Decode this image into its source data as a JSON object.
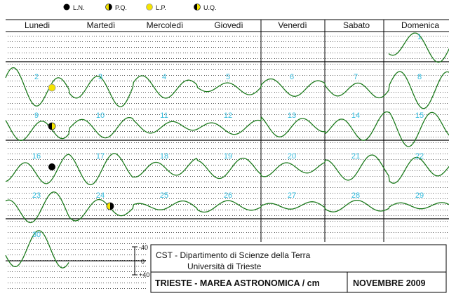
{
  "legend": [
    {
      "label": "L.N.",
      "phase": "new"
    },
    {
      "label": "P.Q.",
      "phase": "first-quarter"
    },
    {
      "label": "L.P.",
      "phase": "full"
    },
    {
      "label": "U.Q.",
      "phase": "last-quarter"
    }
  ],
  "days": [
    "Lunedi",
    "Martedì",
    "Mercoledì",
    "Giovedì",
    "Venerdì",
    "Sabato",
    "Domenica"
  ],
  "scale_labels": [
    "-40",
    "0",
    "+40"
  ],
  "footer": {
    "line1": "CST - Dipartimento di Scienze della Terra",
    "line2": "Università di Trieste",
    "title": "TRIESTE - MAREA ASTRONOMICA / cm",
    "month": "NOVEMBRE 2009"
  },
  "colors": {
    "curve": "#1c7a1c",
    "day_number": "#33bbdd",
    "grid": "#000000",
    "full_moon": "#f5e400"
  },
  "chart_data": {
    "type": "line",
    "title": "TRIESTE - MAREA ASTRONOMICA / cm",
    "month": "NOVEMBRE 2009",
    "units": "cm",
    "ylim": [
      -40,
      40
    ],
    "x_categories": [
      "Lunedi",
      "Martedì",
      "Mercoledì",
      "Giovedì",
      "Venerdì",
      "Sabato",
      "Domenica"
    ],
    "weeks": [
      {
        "days": [
          1
        ]
      },
      {
        "days": [
          2,
          3,
          4,
          5,
          6,
          7,
          8
        ]
      },
      {
        "days": [
          9,
          10,
          11,
          12,
          13,
          14,
          15
        ]
      },
      {
        "days": [
          16,
          17,
          18,
          19,
          20,
          21,
          22
        ]
      },
      {
        "days": [
          23,
          24,
          25,
          26,
          27,
          28,
          29
        ]
      },
      {
        "days": [
          30
        ]
      }
    ],
    "moon_phases": [
      {
        "day": 2,
        "phase": "full"
      },
      {
        "day": 9,
        "phase": "last-quarter"
      },
      {
        "day": 16,
        "phase": "new"
      },
      {
        "day": 24,
        "phase": "first-quarter"
      }
    ],
    "daily_range_cm": [
      {
        "day": 1,
        "max": 30,
        "min": -25
      },
      {
        "day": 2,
        "max": 35,
        "min": -40
      },
      {
        "day": 3,
        "max": 30,
        "min": -35
      },
      {
        "day": 4,
        "max": 20,
        "min": -20
      },
      {
        "day": 5,
        "max": 15,
        "min": -15
      },
      {
        "day": 6,
        "max": 15,
        "min": -15
      },
      {
        "day": 7,
        "max": 20,
        "min": -25
      },
      {
        "day": 8,
        "max": 30,
        "min": -35
      },
      {
        "day": 9,
        "max": 25,
        "min": -35
      },
      {
        "day": 10,
        "max": 15,
        "min": -20
      },
      {
        "day": 11,
        "max": 15,
        "min": -15
      },
      {
        "day": 12,
        "max": 10,
        "min": -15
      },
      {
        "day": 13,
        "max": 20,
        "min": -20
      },
      {
        "day": 14,
        "max": 25,
        "min": -30
      },
      {
        "day": 15,
        "max": 30,
        "min": -35
      },
      {
        "day": 16,
        "max": 25,
        "min": -40
      },
      {
        "day": 17,
        "max": 25,
        "min": -30
      },
      {
        "day": 18,
        "max": 20,
        "min": -25
      },
      {
        "day": 19,
        "max": 15,
        "min": -20
      },
      {
        "day": 20,
        "max": 15,
        "min": -20
      },
      {
        "day": 21,
        "max": 20,
        "min": -25
      },
      {
        "day": 22,
        "max": 25,
        "min": -30
      },
      {
        "day": 23,
        "max": 25,
        "min": -35
      },
      {
        "day": 24,
        "max": 15,
        "min": -25
      },
      {
        "day": 25,
        "max": 10,
        "min": -10
      },
      {
        "day": 26,
        "max": 10,
        "min": -10
      },
      {
        "day": 27,
        "max": 10,
        "min": -10
      },
      {
        "day": 28,
        "max": 10,
        "min": -10
      },
      {
        "day": 29,
        "max": 10,
        "min": -10
      },
      {
        "day": 30,
        "max": 25,
        "min": -40
      }
    ]
  }
}
